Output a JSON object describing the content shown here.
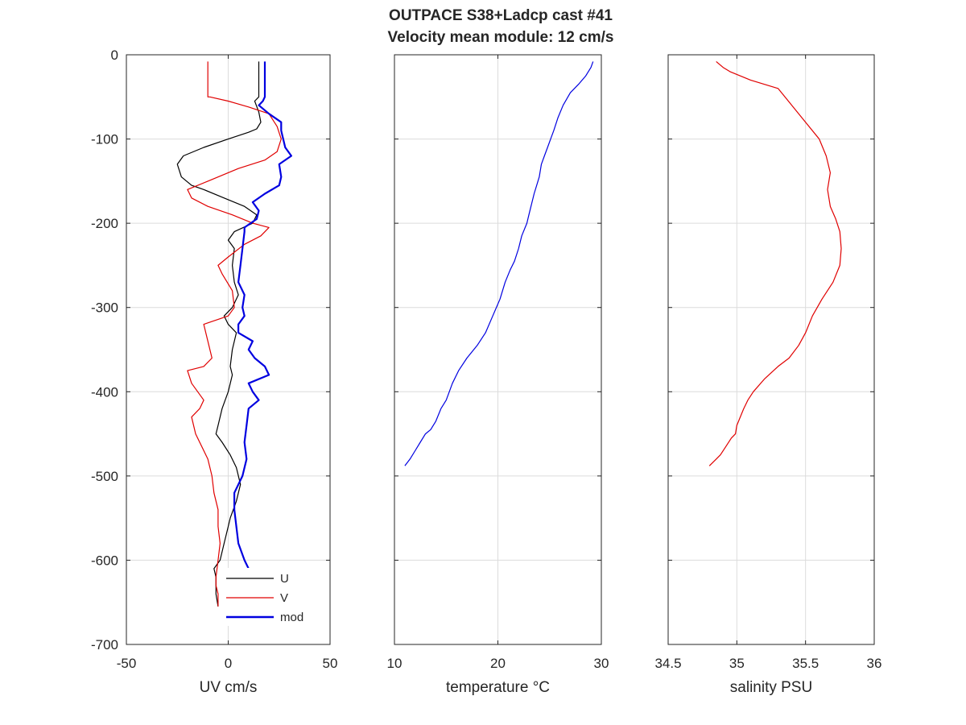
{
  "figure": {
    "title_line1": "OUTPACE S38+Ladcp cast #41",
    "title_line2": "Velocity mean module:  12 cm/s"
  },
  "chart_data": [
    {
      "type": "line",
      "xlabel": "UV cm/s",
      "ylabel": "",
      "xlim": [
        -50,
        50
      ],
      "ylim": [
        -700,
        0
      ],
      "xticks": [
        -50,
        0,
        50
      ],
      "yticks": [
        0,
        -100,
        -200,
        -300,
        -400,
        -500,
        -600,
        -700
      ],
      "grid": true,
      "legend": {
        "placement": "bottom-center",
        "entries": [
          "U",
          "V",
          "mod"
        ]
      },
      "series": [
        {
          "name": "U",
          "color": "#000000",
          "x": [
            15,
            15,
            13,
            15,
            16,
            14,
            10,
            0,
            -12,
            -22,
            -25,
            -23,
            -18,
            -12,
            -2,
            8,
            14,
            12,
            3,
            0,
            3,
            2,
            3,
            5,
            2,
            -2,
            0,
            4,
            2,
            1,
            2,
            0,
            -3,
            -5,
            -6,
            -3,
            1,
            4,
            6,
            4,
            1,
            0,
            -2,
            -4,
            -7,
            -6,
            -6,
            -5
          ],
          "y": [
            -8,
            -50,
            -55,
            -68,
            -80,
            -88,
            -92,
            -100,
            -110,
            -120,
            -130,
            -145,
            -155,
            -160,
            -170,
            -180,
            -190,
            -200,
            -210,
            -220,
            -230,
            -250,
            -270,
            -285,
            -300,
            -310,
            -320,
            -330,
            -350,
            -370,
            -380,
            -400,
            -420,
            -440,
            -450,
            -460,
            -475,
            -490,
            -510,
            -530,
            -550,
            -560,
            -580,
            -600,
            -610,
            -620,
            -640,
            -655
          ]
        },
        {
          "name": "V",
          "color": "#e00000",
          "x": [
            -10,
            -10,
            -9,
            0,
            10,
            20,
            24,
            26,
            24,
            18,
            5,
            -10,
            -20,
            -18,
            -10,
            2,
            12,
            20,
            16,
            8,
            0,
            -5,
            -3,
            2,
            3,
            0,
            -12,
            -10,
            -8,
            -12,
            -20,
            -18,
            -15,
            -12,
            -14,
            -18,
            -16,
            -10,
            -8,
            -7,
            -5,
            -5,
            -4,
            -5,
            -6,
            -6,
            -5,
            -5
          ],
          "y": [
            -8,
            -50,
            -50,
            -55,
            -62,
            -70,
            -85,
            -100,
            -115,
            -125,
            -135,
            -150,
            -160,
            -170,
            -180,
            -190,
            -200,
            -205,
            -215,
            -225,
            -240,
            -250,
            -260,
            -280,
            -300,
            -310,
            -320,
            -340,
            -360,
            -370,
            -375,
            -390,
            -400,
            -410,
            -420,
            -430,
            -450,
            -480,
            -500,
            -520,
            -540,
            -560,
            -580,
            -600,
            -620,
            -630,
            -640,
            -655
          ]
        },
        {
          "name": "mod",
          "color": "#0000e0",
          "x": [
            18,
            18,
            17,
            15,
            20,
            26,
            26,
            28,
            31,
            25,
            26,
            25,
            18,
            12,
            15,
            14,
            8,
            8,
            7,
            6,
            5,
            8,
            7,
            8,
            5,
            5,
            12,
            10,
            13,
            18,
            20,
            10,
            12,
            15,
            10,
            9,
            8,
            9,
            7,
            3,
            3,
            4,
            5,
            8,
            10,
            9,
            9,
            8,
            8
          ],
          "y": [
            -8,
            -50,
            -55,
            -60,
            -70,
            -80,
            -90,
            -110,
            -120,
            -130,
            -145,
            -155,
            -165,
            -175,
            -185,
            -195,
            -205,
            -210,
            -230,
            -250,
            -270,
            -285,
            -300,
            -310,
            -320,
            -330,
            -340,
            -350,
            -360,
            -370,
            -380,
            -390,
            -400,
            -410,
            -420,
            -440,
            -460,
            -480,
            -500,
            -520,
            -540,
            -560,
            -580,
            -600,
            -610,
            -620,
            -630,
            -640,
            -655
          ]
        }
      ]
    },
    {
      "type": "line",
      "xlabel": "temperature °C",
      "ylabel": "",
      "xlim": [
        10,
        30
      ],
      "ylim": [
        -700,
        0
      ],
      "xticks": [
        10,
        20,
        30
      ],
      "grid": true,
      "series": [
        {
          "name": "",
          "color": "#0000e0",
          "x": [
            29.2,
            29.0,
            28.5,
            27.8,
            27.0,
            26.3,
            25.8,
            25.4,
            25.1,
            24.8,
            24.5,
            24.2,
            24.0,
            23.5,
            23.2,
            23.0,
            22.8,
            22.3,
            22.0,
            21.6,
            21.2,
            20.7,
            20.2,
            19.5,
            18.8,
            18.0,
            17.0,
            16.2,
            15.6,
            15.0,
            14.5,
            14.0,
            13.5,
            13.0,
            12.5,
            12.0,
            11.5,
            11.0
          ],
          "y": [
            -8,
            -15,
            -25,
            -35,
            -45,
            -60,
            -75,
            -90,
            -100,
            -110,
            -120,
            -130,
            -145,
            -165,
            -180,
            -190,
            -200,
            -215,
            -230,
            -245,
            -255,
            -270,
            -290,
            -310,
            -330,
            -345,
            -360,
            -375,
            -390,
            -410,
            -420,
            -435,
            -445,
            -450,
            -460,
            -470,
            -480,
            -488
          ]
        }
      ]
    },
    {
      "type": "line",
      "xlabel": "salinity PSU",
      "ylabel": "",
      "xlim": [
        34.5,
        36
      ],
      "ylim": [
        -700,
        0
      ],
      "xticks": [
        34.5,
        35,
        35.5,
        36
      ],
      "grid": true,
      "series": [
        {
          "name": "",
          "color": "#e00000",
          "x": [
            34.85,
            34.9,
            34.95,
            35.1,
            35.3,
            35.4,
            35.5,
            35.6,
            35.65,
            35.68,
            35.66,
            35.68,
            35.72,
            35.75,
            35.76,
            35.75,
            35.7,
            35.62,
            35.55,
            35.5,
            35.45,
            35.38,
            35.3,
            35.2,
            35.12,
            35.08,
            35.05,
            35.0,
            34.99,
            34.96,
            34.92,
            34.88,
            34.85,
            34.8
          ],
          "y": [
            -8,
            -15,
            -20,
            -30,
            -40,
            -60,
            -80,
            -100,
            -120,
            -140,
            -160,
            -180,
            -195,
            -210,
            -230,
            -250,
            -270,
            -290,
            -310,
            -330,
            -345,
            -360,
            -370,
            -385,
            -400,
            -410,
            -420,
            -440,
            -450,
            -455,
            -465,
            -475,
            -480,
            -488
          ]
        }
      ]
    }
  ]
}
